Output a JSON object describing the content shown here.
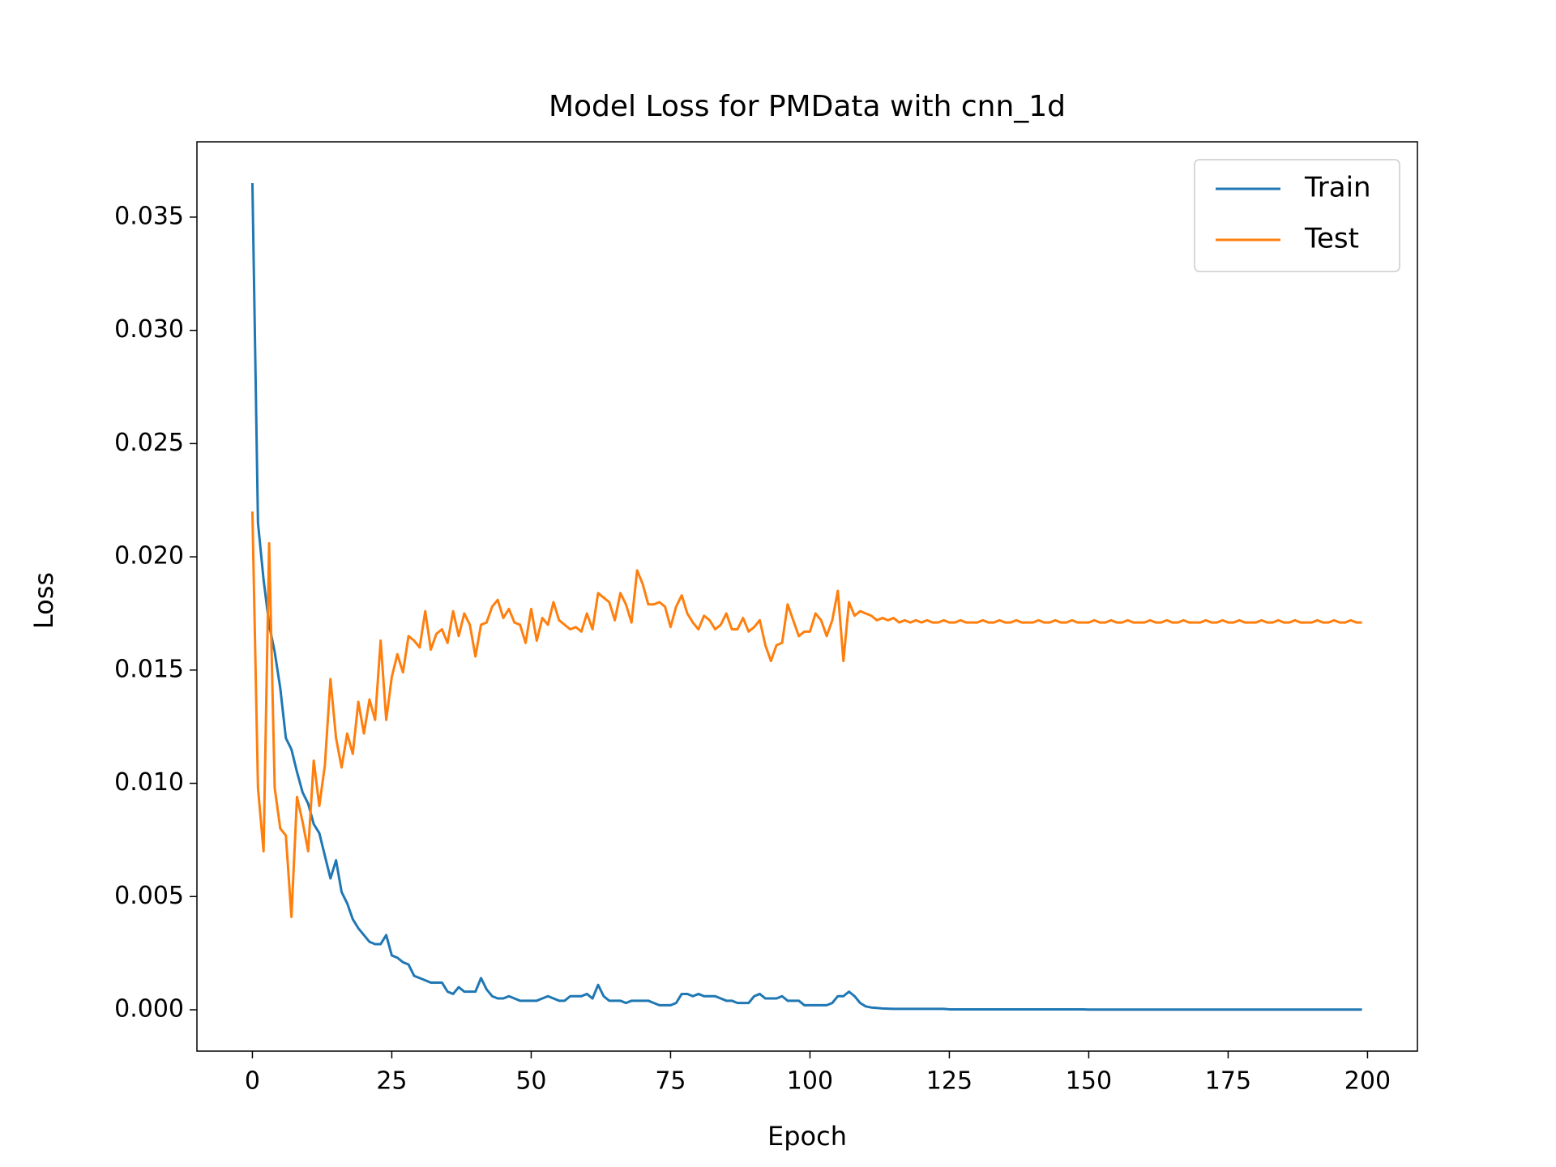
{
  "chart_data": {
    "type": "line",
    "title": "Model Loss for PMData with cnn_1d",
    "xlabel": "Epoch",
    "ylabel": "Loss",
    "x": [
      0,
      1,
      2,
      3,
      4,
      5,
      6,
      7,
      8,
      9,
      10,
      11,
      12,
      13,
      14,
      15,
      16,
      17,
      18,
      19,
      20,
      21,
      22,
      23,
      24,
      25,
      26,
      27,
      28,
      29,
      30,
      31,
      32,
      33,
      34,
      35,
      36,
      37,
      38,
      39,
      40,
      41,
      42,
      43,
      44,
      45,
      46,
      47,
      48,
      49,
      50,
      51,
      52,
      53,
      54,
      55,
      56,
      57,
      58,
      59,
      60,
      61,
      62,
      63,
      64,
      65,
      66,
      67,
      68,
      69,
      70,
      71,
      72,
      73,
      74,
      75,
      76,
      77,
      78,
      79,
      80,
      81,
      82,
      83,
      84,
      85,
      86,
      87,
      88,
      89,
      90,
      91,
      92,
      93,
      94,
      95,
      96,
      97,
      98,
      99,
      100,
      101,
      102,
      103,
      104,
      105,
      106,
      107,
      108,
      109,
      110,
      111,
      112,
      113,
      114,
      115,
      116,
      117,
      118,
      119,
      120,
      121,
      122,
      123,
      124,
      125,
      126,
      127,
      128,
      129,
      130,
      131,
      132,
      133,
      134,
      135,
      136,
      137,
      138,
      139,
      140,
      141,
      142,
      143,
      144,
      145,
      146,
      147,
      148,
      149,
      150,
      151,
      152,
      153,
      154,
      155,
      156,
      157,
      158,
      159,
      160,
      161,
      162,
      163,
      164,
      165,
      166,
      167,
      168,
      169,
      170,
      171,
      172,
      173,
      174,
      175,
      176,
      177,
      178,
      179,
      180,
      181,
      182,
      183,
      184,
      185,
      186,
      187,
      188,
      189,
      190,
      191,
      192,
      193,
      194,
      195,
      196,
      197,
      198,
      199
    ],
    "series": [
      {
        "name": "Train",
        "color": "#1f77b4",
        "values": [
          0.0365,
          0.0215,
          0.019,
          0.017,
          0.0158,
          0.0142,
          0.012,
          0.0115,
          0.0105,
          0.0096,
          0.0091,
          0.0082,
          0.0078,
          0.0068,
          0.0058,
          0.0066,
          0.0052,
          0.0047,
          0.004,
          0.0036,
          0.0033,
          0.003,
          0.0029,
          0.0029,
          0.0033,
          0.0024,
          0.0023,
          0.0021,
          0.002,
          0.0015,
          0.0014,
          0.0013,
          0.0012,
          0.0012,
          0.0012,
          0.0008,
          0.0007,
          0.001,
          0.0008,
          0.0008,
          0.0008,
          0.0014,
          0.0009,
          0.0006,
          0.0005,
          0.0005,
          0.0006,
          0.0005,
          0.0004,
          0.0004,
          0.0004,
          0.0004,
          0.0005,
          0.0006,
          0.0005,
          0.0004,
          0.0004,
          0.0006,
          0.0006,
          0.0006,
          0.0007,
          0.0005,
          0.0011,
          0.0006,
          0.0004,
          0.0004,
          0.0004,
          0.0003,
          0.0004,
          0.0004,
          0.0004,
          0.0004,
          0.0003,
          0.0002,
          0.0002,
          0.0002,
          0.0003,
          0.0007,
          0.0007,
          0.0006,
          0.0007,
          0.0006,
          0.0006,
          0.0006,
          0.0005,
          0.0004,
          0.0004,
          0.0003,
          0.0003,
          0.0003,
          0.0006,
          0.0007,
          0.0005,
          0.0005,
          0.0005,
          0.0006,
          0.0004,
          0.0004,
          0.0004,
          0.0002,
          0.0002,
          0.0002,
          0.0002,
          0.0002,
          0.0003,
          0.0006,
          0.0006,
          0.0008,
          0.0006,
          0.0003,
          0.00015,
          0.0001,
          8e-05,
          6e-05,
          5e-05,
          4e-05,
          4e-05,
          4e-05,
          4e-05,
          4e-05,
          4e-05,
          4e-05,
          4e-05,
          4e-05,
          4e-05,
          2e-05,
          2e-05,
          2e-05,
          2e-05,
          2e-05,
          2e-05,
          2e-05,
          2e-05,
          2e-05,
          2e-05,
          2e-05,
          2e-05,
          2e-05,
          2e-05,
          2e-05,
          2e-05,
          2e-05,
          2e-05,
          2e-05,
          2e-05,
          2e-05,
          2e-05,
          2e-05,
          2e-05,
          2e-05,
          1e-05,
          1e-05,
          1e-05,
          1e-05,
          1e-05,
          1e-05,
          1e-05,
          1e-05,
          1e-05,
          1e-05,
          1e-05,
          1e-05,
          1e-05,
          1e-05,
          1e-05,
          1e-05,
          1e-05,
          1e-05,
          1e-05,
          1e-05,
          1e-05,
          1e-05,
          1e-05,
          1e-05,
          1e-05,
          1e-05,
          1e-05,
          1e-05,
          1e-05,
          1e-05,
          1e-05,
          1e-05,
          1e-05,
          1e-05,
          1e-05,
          1e-05,
          1e-05,
          1e-05,
          1e-05,
          1e-05,
          1e-05,
          1e-05,
          1e-05,
          1e-05,
          1e-05,
          1e-05,
          1e-05,
          1e-05,
          1e-05,
          1e-05
        ]
      },
      {
        "name": "Test",
        "color": "#ff7f0e",
        "values": [
          0.022,
          0.0098,
          0.007,
          0.0206,
          0.0098,
          0.008,
          0.0077,
          0.0041,
          0.0094,
          0.0083,
          0.007,
          0.011,
          0.009,
          0.0108,
          0.0146,
          0.012,
          0.0107,
          0.0122,
          0.0113,
          0.0136,
          0.0122,
          0.0137,
          0.0128,
          0.0163,
          0.0128,
          0.0147,
          0.0157,
          0.0149,
          0.0165,
          0.0163,
          0.016,
          0.0176,
          0.0159,
          0.0166,
          0.0168,
          0.0162,
          0.0176,
          0.0165,
          0.0175,
          0.017,
          0.0156,
          0.017,
          0.0171,
          0.0178,
          0.0181,
          0.0173,
          0.0177,
          0.0171,
          0.017,
          0.0162,
          0.0177,
          0.0163,
          0.0173,
          0.017,
          0.018,
          0.0172,
          0.017,
          0.0168,
          0.0169,
          0.0167,
          0.0175,
          0.0168,
          0.0184,
          0.0182,
          0.018,
          0.0172,
          0.0184,
          0.0179,
          0.0171,
          0.0194,
          0.0188,
          0.0179,
          0.0179,
          0.018,
          0.0178,
          0.0169,
          0.0178,
          0.0183,
          0.0175,
          0.0171,
          0.0168,
          0.0174,
          0.0172,
          0.0168,
          0.017,
          0.0175,
          0.0168,
          0.0168,
          0.0173,
          0.0167,
          0.0169,
          0.0172,
          0.0161,
          0.0154,
          0.0161,
          0.0162,
          0.0179,
          0.0172,
          0.0165,
          0.0167,
          0.0167,
          0.0175,
          0.0172,
          0.0165,
          0.0172,
          0.0185,
          0.0154,
          0.018,
          0.0174,
          0.0176,
          0.0175,
          0.0174,
          0.0172,
          0.0173,
          0.0172,
          0.0173,
          0.0171,
          0.0172,
          0.0171,
          0.0172,
          0.0171,
          0.0172,
          0.0171,
          0.0171,
          0.0172,
          0.0171,
          0.0171,
          0.0172,
          0.0171,
          0.0171,
          0.0171,
          0.0172,
          0.0171,
          0.0171,
          0.0172,
          0.0171,
          0.0171,
          0.0172,
          0.0171,
          0.0171,
          0.0171,
          0.0172,
          0.0171,
          0.0171,
          0.0172,
          0.0171,
          0.0171,
          0.0172,
          0.0171,
          0.0171,
          0.0171,
          0.0172,
          0.0171,
          0.0171,
          0.0172,
          0.0171,
          0.0171,
          0.0172,
          0.0171,
          0.0171,
          0.0171,
          0.0172,
          0.0171,
          0.0171,
          0.0172,
          0.0171,
          0.0171,
          0.0172,
          0.0171,
          0.0171,
          0.0171,
          0.0172,
          0.0171,
          0.0171,
          0.0172,
          0.0171,
          0.0171,
          0.0172,
          0.0171,
          0.0171,
          0.0171,
          0.0172,
          0.0171,
          0.0171,
          0.0172,
          0.0171,
          0.0171,
          0.0172,
          0.0171,
          0.0171,
          0.0171,
          0.0172,
          0.0171,
          0.0171,
          0.0172,
          0.0171,
          0.0171,
          0.0172,
          0.0171,
          0.0171
        ]
      }
    ],
    "xlim": [
      -9.95,
      208.95
    ],
    "xticks": [
      0,
      25,
      50,
      75,
      100,
      125,
      150,
      175,
      200
    ],
    "ylim": [
      -0.001825,
      0.038325
    ],
    "yticks": [
      {
        "value": 0,
        "label": "0.000"
      },
      0.005,
      {
        "value": 0.01,
        "label": "0.010"
      },
      0.015,
      {
        "value": 0.02,
        "label": "0.020"
      },
      0.025,
      {
        "value": 0.03,
        "label": "0.030"
      },
      0.035
    ],
    "grid": false,
    "legend": "upper right"
  }
}
